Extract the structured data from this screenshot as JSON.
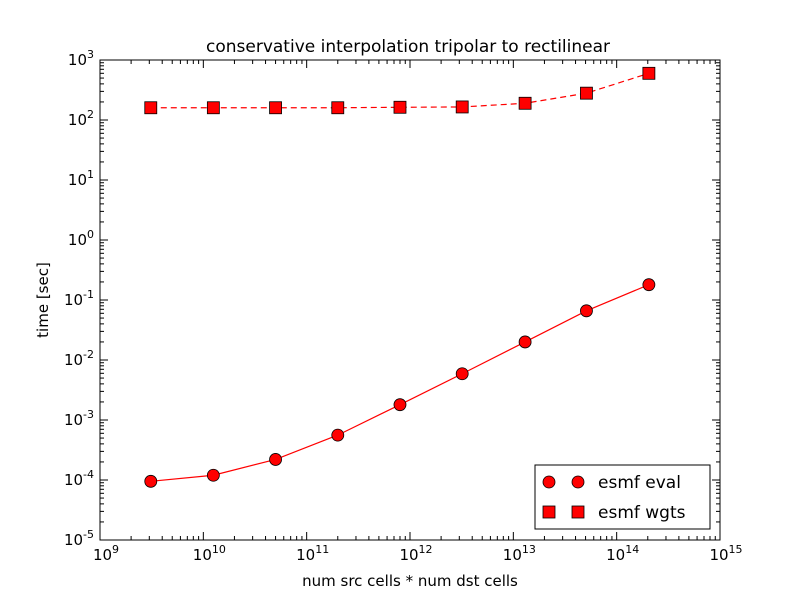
{
  "chart_data": {
    "type": "line",
    "title": "conservative interpolation tripolar to rectilinear",
    "xlabel": "num src cells * num dst cells",
    "ylabel": "time [sec]",
    "x_scale": "log",
    "y_scale": "log",
    "xlim": [
      1000000000.0,
      1000000000000000.0
    ],
    "ylim": [
      1e-05,
      1000.0
    ],
    "x_ticks": [
      {
        "value": 1000000000.0,
        "base": "10",
        "exp": "9"
      },
      {
        "value": 10000000000.0,
        "base": "10",
        "exp": "10"
      },
      {
        "value": 100000000000.0,
        "base": "10",
        "exp": "11"
      },
      {
        "value": 1000000000000.0,
        "base": "10",
        "exp": "12"
      },
      {
        "value": 10000000000000.0,
        "base": "10",
        "exp": "13"
      },
      {
        "value": 100000000000000.0,
        "base": "10",
        "exp": "14"
      },
      {
        "value": 1000000000000000.0,
        "base": "10",
        "exp": "15"
      }
    ],
    "y_ticks": [
      {
        "value": 1e-05,
        "base": "10",
        "exp": "-5"
      },
      {
        "value": 0.0001,
        "base": "10",
        "exp": "-4"
      },
      {
        "value": 0.001,
        "base": "10",
        "exp": "-3"
      },
      {
        "value": 0.01,
        "base": "10",
        "exp": "-2"
      },
      {
        "value": 0.1,
        "base": "10",
        "exp": "-1"
      },
      {
        "value": 1.0,
        "base": "10",
        "exp": "0"
      },
      {
        "value": 10.0,
        "base": "10",
        "exp": "1"
      },
      {
        "value": 100.0,
        "base": "10",
        "exp": "2"
      },
      {
        "value": 1000.0,
        "base": "10",
        "exp": "3"
      }
    ],
    "grid": false,
    "legend_position": "lower right",
    "series": [
      {
        "name": "esmf eval",
        "marker": "circle",
        "line_style": "solid",
        "color": "#ff0000",
        "x": [
          3100000000.0,
          12500000000.0,
          50000000000.0,
          200000000000.0,
          800000000000.0,
          3200000000000.0,
          13000000000000.0,
          51000000000000.0,
          205000000000000.0
        ],
        "y": [
          9.5e-05,
          0.00012,
          0.00022,
          0.00056,
          0.0018,
          0.0059,
          0.02,
          0.066,
          0.18
        ]
      },
      {
        "name": "esmf wgts",
        "marker": "square",
        "line_style": "dashed",
        "color": "#ff0000",
        "x": [
          3100000000.0,
          12500000000.0,
          50000000000.0,
          200000000000.0,
          800000000000.0,
          3200000000000.0,
          13000000000000.0,
          51000000000000.0,
          205000000000000.0
        ],
        "y": [
          160,
          160,
          160,
          160,
          163,
          165,
          190,
          280,
          600
        ]
      }
    ]
  }
}
